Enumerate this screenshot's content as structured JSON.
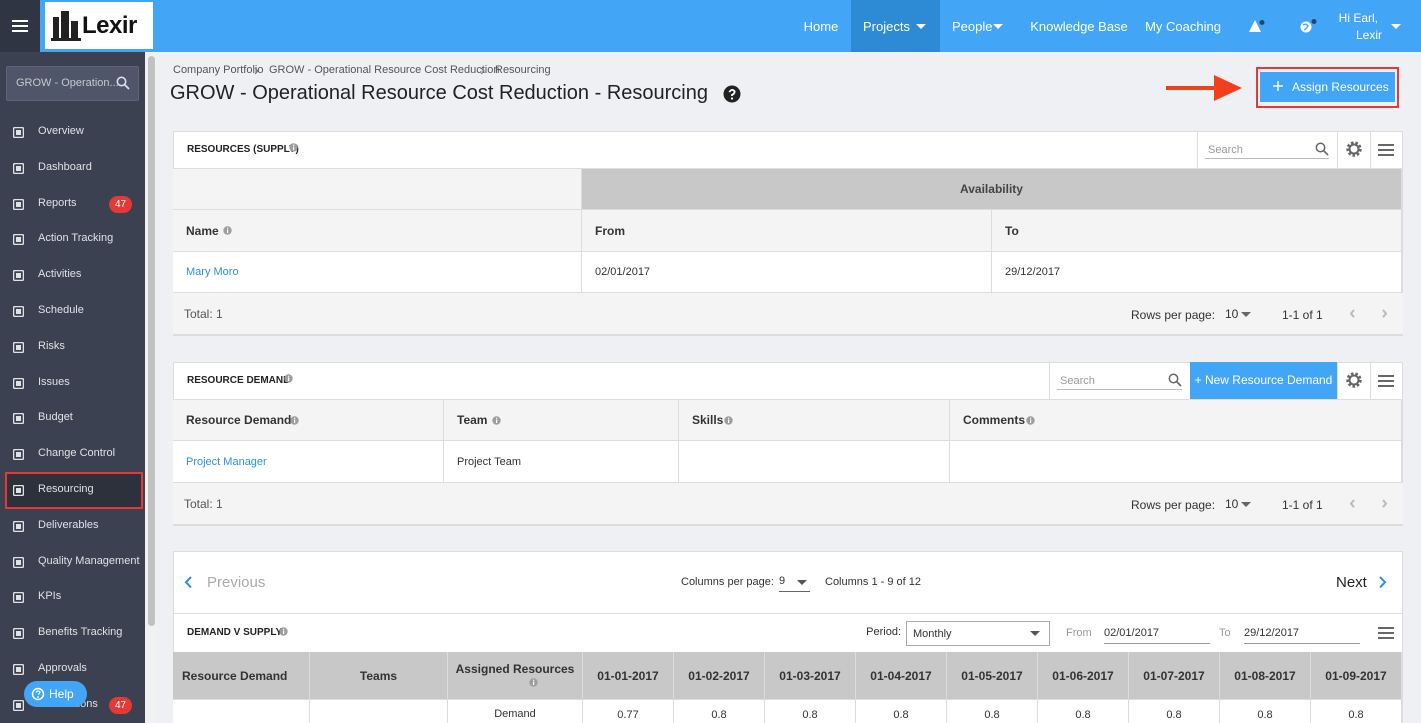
{
  "topbar": {
    "logo": "Lexir",
    "nav": [
      "Home",
      "Projects",
      "People",
      "Knowledge Base",
      "My Coaching"
    ],
    "greeting": "Hi Earl,",
    "user": "Lexir"
  },
  "sidebar": {
    "search": "GROW - Operation...",
    "items": [
      {
        "label": "Overview"
      },
      {
        "label": "Dashboard"
      },
      {
        "label": "Reports",
        "badge": 47
      },
      {
        "label": "Action Tracking"
      },
      {
        "label": "Activities"
      },
      {
        "label": "Schedule"
      },
      {
        "label": "Risks"
      },
      {
        "label": "Issues"
      },
      {
        "label": "Budget"
      },
      {
        "label": "Change Control"
      },
      {
        "label": "Resourcing"
      },
      {
        "label": "Deliverables"
      },
      {
        "label": "Quality Management"
      },
      {
        "label": "KPIs"
      },
      {
        "label": "Benefits Tracking"
      },
      {
        "label": "Approvals"
      },
      {
        "label": "Notifications",
        "badge": 47
      }
    ],
    "help": "Help"
  },
  "page": {
    "breadcrumb": [
      "Company Portfolio",
      "GROW - Operational Resource Cost Reduction",
      "Resourcing"
    ],
    "title": "GROW - Operational Resource Cost Reduction - Resourcing",
    "assign_button": "Assign Resources"
  },
  "supply": {
    "title": "RESOURCES (SUPPLY)",
    "search": "Search",
    "group_header": "Availability",
    "columns": [
      "Name",
      "From",
      "To"
    ],
    "rows": [
      [
        "Mary Moro",
        "02/01/2017",
        "29/12/2017"
      ]
    ],
    "total": "Total: 1",
    "rows_per_page_label": "Rows per page:",
    "rows_per_page": 10,
    "range": "1-1 of 1"
  },
  "demand": {
    "title": "RESOURCE DEMAND",
    "search": "Search",
    "new_button": "+ New Resource Demand",
    "columns": [
      "Resource Demand",
      "Team",
      "Skills",
      "Comments"
    ],
    "rows": [
      [
        "Project Manager",
        "Project Team"
      ]
    ],
    "total": "Total: 1",
    "rows_per_page_label": "Rows per page:",
    "rows_per_page": 10,
    "range": "1-1 of 1"
  },
  "demand_v_supply": {
    "previous": "Previous",
    "columns_per_page_label": "Columns per page:",
    "columns_per_page": 9,
    "columns_range": "Columns 1 - 9 of 12",
    "next": "Next",
    "title": "DEMAND V SUPPLY",
    "period_label": "Period:",
    "period": "Monthly",
    "from_label": "From",
    "from": "02/01/2017",
    "to_label": "To",
    "to": "29/12/2017",
    "columns": [
      "Resource Demand",
      "Teams",
      "Assigned Resources",
      "01-01-2017",
      "01-02-2017",
      "01-03-2017",
      "01-04-2017",
      "01-05-2017",
      "01-06-2017",
      "01-07-2017",
      "01-08-2017",
      "01-09-2017"
    ],
    "rows": [
      {
        "label": "Demand",
        "values": [
          0.77,
          0.8,
          0.8,
          0.8,
          0.8,
          0.8,
          0.8,
          0.8,
          0.8
        ]
      }
    ]
  }
}
